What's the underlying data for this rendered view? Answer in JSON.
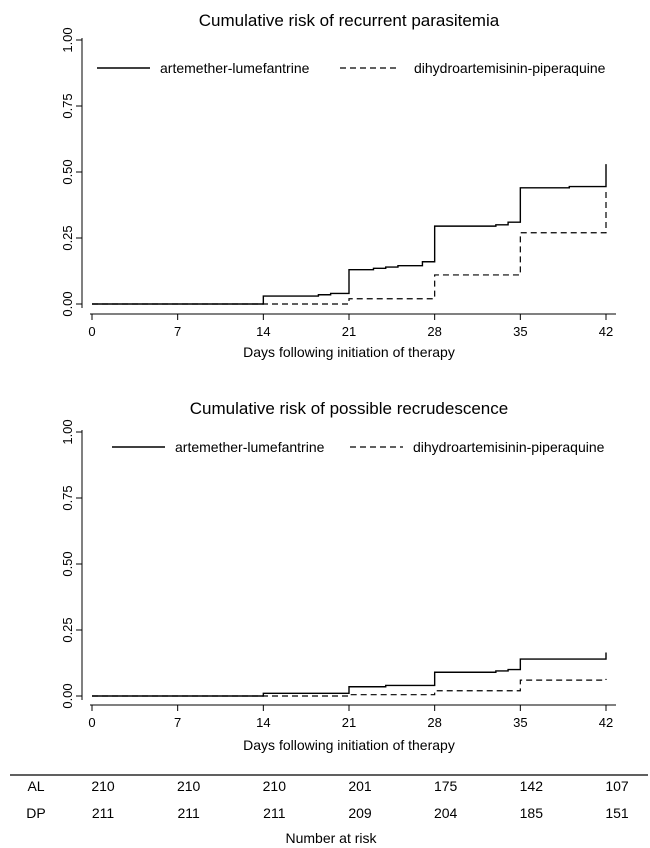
{
  "chart_data": [
    {
      "type": "line",
      "step": true,
      "title": "Cumulative risk of recurrent parasitemia",
      "xlabel": "Days following initiation of therapy",
      "ylabel": "",
      "xlim": [
        0,
        42
      ],
      "ylim": [
        0,
        1
      ],
      "xticks": [
        0,
        7,
        14,
        21,
        28,
        35,
        42
      ],
      "yticks": [
        "0.00",
        "0.25",
        "0.50",
        "0.75",
        "1.00"
      ],
      "grid": false,
      "legend": "top",
      "series": [
        {
          "name": "artemether-lumefantrine",
          "dash": "solid",
          "x": [
            0,
            14,
            18.5,
            19.5,
            21,
            23,
            24,
            25,
            27,
            28,
            33,
            34,
            35,
            39,
            42,
            42
          ],
          "y": [
            0,
            0.03,
            0.035,
            0.04,
            0.13,
            0.135,
            0.14,
            0.145,
            0.16,
            0.295,
            0.3,
            0.31,
            0.44,
            0.445,
            0.445,
            0.53
          ]
        },
        {
          "name": "dihydroartemisinin-piperaquine",
          "dash": "dashed",
          "x": [
            0,
            21,
            28,
            35,
            42,
            42
          ],
          "y": [
            0,
            0.02,
            0.11,
            0.27,
            0.27,
            0.43
          ]
        }
      ]
    },
    {
      "type": "line",
      "step": true,
      "title": "Cumulative risk of possible recrudescence",
      "xlabel": "Days following initiation of therapy",
      "ylabel": "",
      "xlim": [
        0,
        42
      ],
      "ylim": [
        0,
        1
      ],
      "xticks": [
        0,
        7,
        14,
        21,
        28,
        35,
        42
      ],
      "yticks": [
        "0.00",
        "0.25",
        "0.50",
        "0.75",
        "1.00"
      ],
      "grid": false,
      "legend": "top",
      "series": [
        {
          "name": "artemether-lumefantrine",
          "dash": "solid",
          "x": [
            0,
            14,
            21,
            24,
            28,
            33,
            34,
            35,
            42,
            42
          ],
          "y": [
            0,
            0.01,
            0.035,
            0.04,
            0.09,
            0.095,
            0.1,
            0.14,
            0.14,
            0.165
          ]
        },
        {
          "name": "dihydroartemisinin-piperaquine",
          "dash": "dashed",
          "x": [
            0,
            21,
            28,
            35,
            42,
            42
          ],
          "y": [
            0,
            0.005,
            0.02,
            0.06,
            0.06,
            0.065
          ]
        }
      ]
    }
  ],
  "risk_table": {
    "title": "Number at risk",
    "days": [
      0,
      7,
      14,
      21,
      28,
      35,
      42
    ],
    "rows": [
      {
        "label": "AL",
        "values": [
          "210",
          "210",
          "210",
          "201",
          "175",
          "142",
          "107"
        ]
      },
      {
        "label": "DP",
        "values": [
          "211",
          "211",
          "211",
          "209",
          "204",
          "185",
          "151"
        ]
      }
    ]
  }
}
